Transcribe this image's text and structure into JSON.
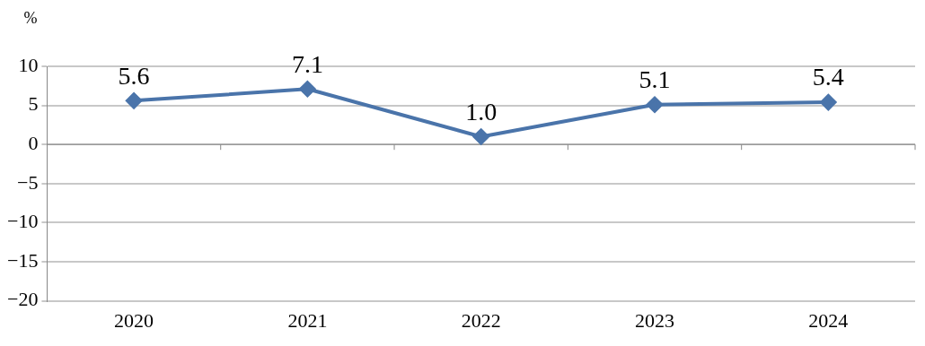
{
  "chart_data": {
    "type": "line",
    "ylabel": "%",
    "categories": [
      "2020",
      "2021",
      "2022",
      "2023",
      "2024"
    ],
    "series": [
      {
        "color": "#4a74aa",
        "values": [
          5.6,
          7.1,
          1.0,
          5.1,
          5.4
        ],
        "value_labels": [
          "5.6",
          "7.1",
          "1.0",
          "5.1",
          "5.4"
        ]
      }
    ],
    "ylim": [
      -20,
      10
    ],
    "yticks": [
      {
        "value": -20,
        "label": "−20"
      },
      {
        "value": -15,
        "label": "−15"
      },
      {
        "value": -10,
        "label": "−10"
      },
      {
        "value": -5,
        "label": "−5"
      },
      0,
      5,
      10
    ],
    "grid": "y",
    "legend": false,
    "marker": "diamond",
    "line_style": "solid"
  }
}
